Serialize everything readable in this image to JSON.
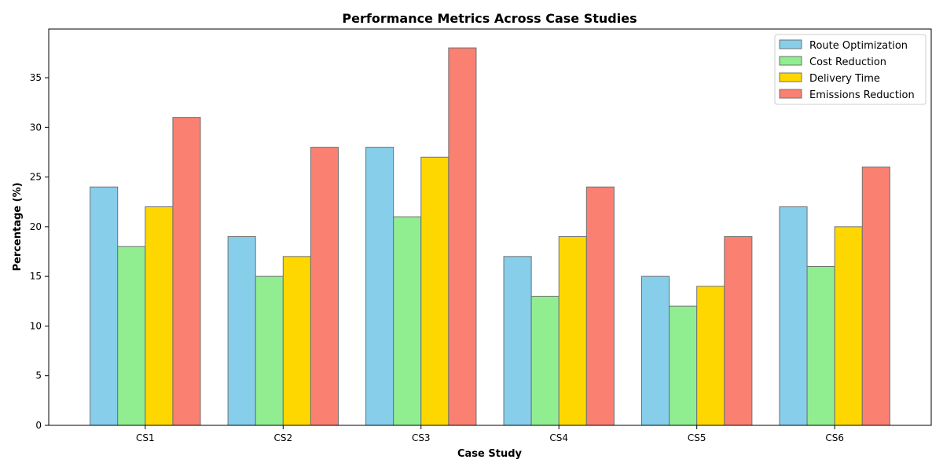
{
  "chart_data": {
    "type": "bar",
    "title": "Performance Metrics Across Case Studies",
    "xlabel": "Case Study",
    "ylabel": "Percentage (%)",
    "categories": [
      "CS1",
      "CS2",
      "CS3",
      "CS4",
      "CS5",
      "CS6"
    ],
    "ylim": [
      0,
      39.9
    ],
    "yticks": [
      0,
      5,
      10,
      15,
      20,
      25,
      30,
      35
    ],
    "grid": false,
    "legend_position": "top-right",
    "series": [
      {
        "name": "Route Optimization",
        "color": "#87ceeb",
        "values": [
          24,
          19,
          28,
          17,
          15,
          22
        ]
      },
      {
        "name": "Cost Reduction",
        "color": "#90ee90",
        "values": [
          18,
          15,
          21,
          13,
          12,
          16
        ]
      },
      {
        "name": "Delivery Time",
        "color": "#ffd700",
        "values": [
          22,
          17,
          27,
          19,
          14,
          20
        ]
      },
      {
        "name": "Emissions Reduction",
        "color": "#fa8072",
        "values": [
          31,
          28,
          38,
          24,
          19,
          26
        ]
      }
    ]
  }
}
